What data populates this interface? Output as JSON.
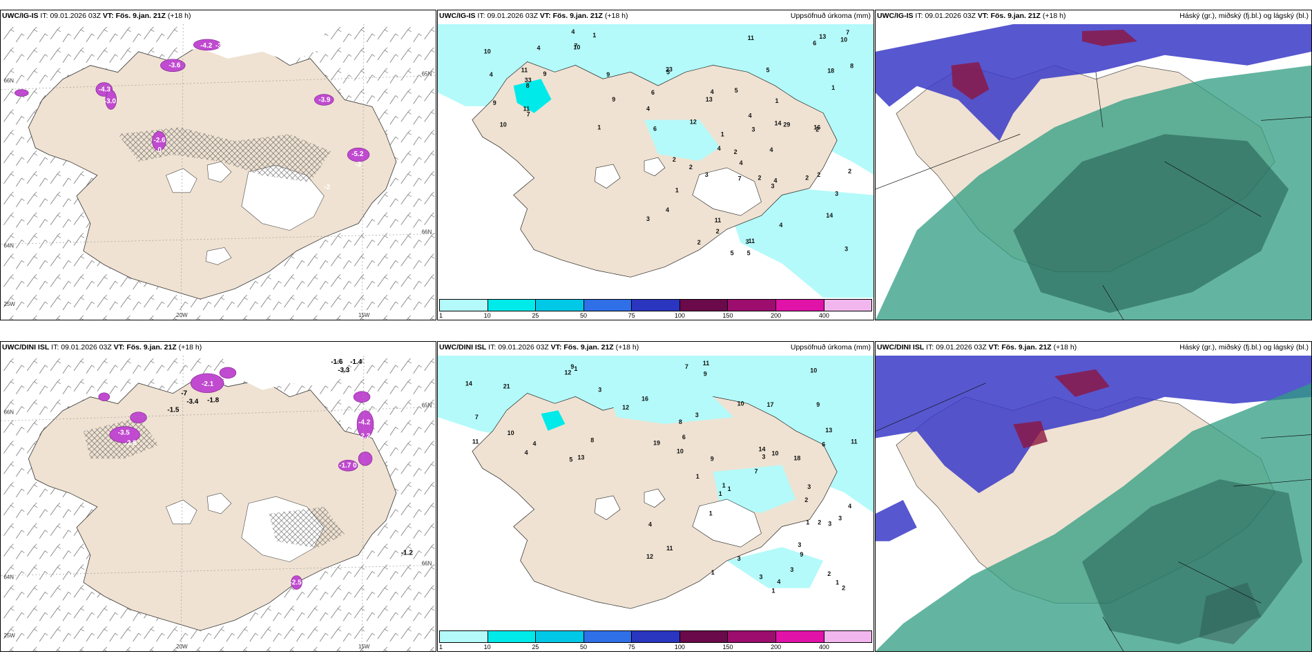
{
  "panels": {
    "p1": {
      "model": "UWC/IG-IS",
      "it_label": "IT:",
      "it": "09.01.2026 03Z",
      "vt_label": "VT:",
      "vt": "Fös. 9.jan. 21Z",
      "lead": "(+18 h)",
      "title": "",
      "lat_labels": [
        "66N",
        "64N",
        "65N",
        "66N"
      ],
      "lon_labels": [
        "20W",
        "15W",
        "25W"
      ],
      "temp_labels": [
        "-3.6",
        "-4.2",
        "-3.0",
        "-4.3",
        "-3.0",
        "-3.9",
        "-2.6",
        "0",
        "-5.2",
        "-3",
        "-2"
      ]
    },
    "p2": {
      "model": "UWC/IG-IS",
      "it_label": "IT:",
      "it": "09.01.2026 03Z",
      "vt_label": "VT:",
      "vt": "Fös. 9.jan. 21Z",
      "lead": "(+18 h)",
      "title": "Uppsöfnuð úrkoma (mm)",
      "precip_labels": [
        "13",
        "6",
        "6",
        "10",
        "33",
        "9",
        "4",
        "7",
        "8",
        "5",
        "11",
        "8",
        "12",
        "9",
        "5",
        "4",
        "10",
        "14",
        "1",
        "6",
        "7",
        "13",
        "16",
        "23",
        "18",
        "5",
        "4",
        "10",
        "4",
        "11",
        "7",
        "4",
        "4",
        "9",
        "10",
        "11",
        "1",
        "1",
        "1",
        "9",
        "14",
        "2",
        "2",
        "2",
        "2",
        "3",
        "1",
        "3",
        "4",
        "2",
        "4",
        "5",
        "2",
        "3",
        "11",
        "7",
        "29",
        "5",
        "4",
        "1",
        "3",
        "2",
        "4",
        "2",
        "2",
        "3",
        "3",
        "2",
        "4",
        "3",
        "11",
        "4"
      ]
    },
    "p3": {
      "model": "UWC/IG-IS",
      "it_label": "IT:",
      "it": "09.01.2026 03Z",
      "vt_label": "VT:",
      "vt": "Fös. 9.jan. 21Z",
      "lead": "(+18 h)",
      "title": "Háský (gr.), miðský (fj.bl.) og lágský (bl.)"
    },
    "p4": {
      "model": "UWC/DINI ISL",
      "it_label": "IT:",
      "it": "09.01.2026 03Z",
      "vt_label": "VT:",
      "vt": "Fös. 9.jan. 21Z",
      "lead": "(+18 h)",
      "title": "",
      "lat_labels": [
        "66N",
        "64N",
        "65N",
        "66N"
      ],
      "lon_labels": [
        "20W",
        "15W",
        "25W"
      ],
      "temp_labels": [
        "-1.6",
        "-1.4",
        "-3.3",
        "-2.1",
        "-7",
        "-3.4",
        "-1.8",
        "-1.5",
        "-3.5",
        "-2.8",
        "-4.2",
        "-2.2",
        "-1.7",
        "0",
        "-1.2",
        "-2.5"
      ]
    },
    "p5": {
      "model": "UWC/DINI ISL",
      "it_label": "IT:",
      "it": "09.01.2026 03Z",
      "vt_label": "VT:",
      "vt": "Fös. 9.jan. 21Z",
      "lead": "(+18 h)",
      "title": "Uppsöfnuð úrkoma (mm)",
      "precip_labels": [
        "3",
        "6",
        "9",
        "1",
        "3",
        "10",
        "13",
        "14",
        "16",
        "11",
        "4",
        "12",
        "14",
        "7",
        "8",
        "10",
        "9",
        "7",
        "10",
        "11",
        "6",
        "5",
        "10",
        "10",
        "12",
        "18",
        "19",
        "17",
        "21",
        "13",
        "9",
        "11",
        "8",
        "4",
        "3",
        "4",
        "9",
        "9",
        "11",
        "7",
        "12",
        "2",
        "3",
        "1",
        "1",
        "2",
        "1",
        "2",
        "3",
        "3",
        "1",
        "3",
        "3",
        "4",
        "1",
        "3",
        "2",
        "4",
        "3",
        "1",
        "1",
        "1",
        "1"
      ]
    },
    "p6": {
      "model": "UWC/DINI ISL",
      "it_label": "IT:",
      "it": "09.01.2026 03Z",
      "vt_label": "VT:",
      "vt": "Fös. 9.jan. 21Z",
      "lead": "(+18 h)",
      "title": "Háský (gr.), miðský (fj.bl.) og lágský (bl.)"
    }
  },
  "colorbar": {
    "labels": [
      "1",
      "10",
      "25",
      "50",
      "75",
      "100",
      "150",
      "200",
      "400"
    ],
    "colors": [
      "#b4fafa",
      "#00eaea",
      "#00c8e6",
      "#2f6fe8",
      "#2a35c0",
      "#6a0a4a",
      "#9c0d6e",
      "#e012a8",
      "#f2b6ef"
    ]
  },
  "colors": {
    "land": "#efe2d2",
    "cloud_low": "#3a3ac8",
    "cloud_mid": "#2f9c82",
    "cloud_high": "#8c1540",
    "precip": "#b4fafa",
    "snow_pink": "#c04ad0"
  }
}
